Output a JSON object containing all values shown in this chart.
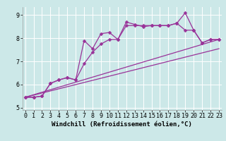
{
  "xlabel": "Windchill (Refroidissement éolien,°C)",
  "bg_color": "#cce8e8",
  "line_color": "#993399",
  "xlim": [
    -0.3,
    23.3
  ],
  "ylim": [
    4.9,
    9.35
  ],
  "yticks": [
    5,
    6,
    7,
    8,
    9
  ],
  "xticks": [
    0,
    1,
    2,
    3,
    4,
    5,
    6,
    7,
    8,
    9,
    10,
    11,
    12,
    13,
    14,
    15,
    16,
    17,
    18,
    19,
    20,
    21,
    22,
    23
  ],
  "line1_x": [
    0,
    1,
    2,
    3,
    4,
    5,
    6,
    7,
    8,
    9,
    10,
    11,
    12,
    13,
    14,
    15,
    16,
    17,
    18,
    19,
    20,
    21,
    22,
    23
  ],
  "line1_y": [
    5.45,
    5.45,
    5.5,
    6.05,
    6.2,
    6.3,
    6.2,
    7.9,
    7.55,
    8.2,
    8.25,
    7.95,
    8.7,
    8.6,
    8.5,
    8.55,
    8.55,
    8.55,
    8.65,
    9.1,
    8.35,
    7.8,
    7.95,
    7.95
  ],
  "line2_x": [
    0,
    1,
    2,
    3,
    4,
    5,
    6,
    7,
    8,
    9,
    10,
    11,
    12,
    13,
    14,
    15,
    16,
    17,
    18,
    19,
    20,
    21,
    22,
    23
  ],
  "line2_y": [
    5.45,
    5.45,
    5.5,
    6.05,
    6.2,
    6.3,
    6.2,
    6.9,
    7.4,
    7.75,
    7.95,
    7.95,
    8.55,
    8.55,
    8.55,
    8.55,
    8.55,
    8.55,
    8.65,
    8.35,
    8.35,
    7.8,
    7.95,
    7.95
  ],
  "line3_x": [
    0,
    23
  ],
  "line3_y": [
    5.45,
    7.95
  ],
  "line4_x": [
    0,
    23
  ],
  "line4_y": [
    5.45,
    7.55
  ],
  "markersize": 2.5,
  "linewidth": 0.9,
  "xlabel_fontsize": 6.5,
  "tick_fontsize": 6.0
}
